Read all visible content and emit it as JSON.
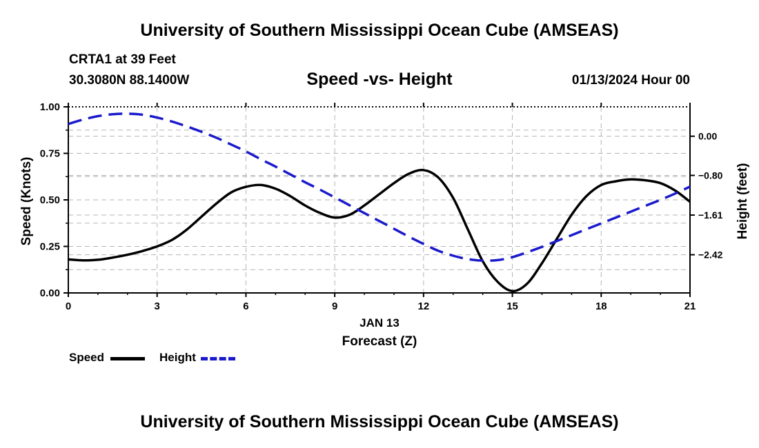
{
  "page": {
    "title_top": "University of Southern Mississippi Ocean Cube (AMSEAS)",
    "title_bottom": "University of Southern Mississippi Ocean Cube (AMSEAS)",
    "station": "CRTA1 at 39 Feet",
    "coords": "30.3080N  88.1400W",
    "subtitle": "Speed -vs- Height",
    "datestamp": "01/13/2024 Hour 00"
  },
  "legend": {
    "speed_label": "Speed",
    "height_label": "Height"
  },
  "colors": {
    "speed": "#000000",
    "height": "#1a1acc",
    "grid": "#b4b4b4"
  },
  "chart_data": {
    "type": "line",
    "xlabel_date": "JAN 13",
    "xlabel": "Forecast (Z)",
    "ylabel_left": "Speed (Knots)",
    "ylabel_right": "Height (feet)",
    "xlim": [
      0,
      21
    ],
    "x_ticks": [
      0,
      3,
      6,
      9,
      12,
      15,
      18,
      21
    ],
    "x_tick_labels": [
      "0",
      "3",
      "6",
      "9",
      "12",
      "15",
      "18",
      "21"
    ],
    "ylim_left": [
      0,
      1
    ],
    "y_left_ticks": [
      0,
      0.25,
      0.5,
      0.75,
      1.0
    ],
    "y_left_tick_labels": [
      "0.00",
      "0.25",
      "0.50",
      "0.75",
      "1.00"
    ],
    "ylim_right": [
      -3.2,
      0.6
    ],
    "y_right_ticks": [
      0.0,
      -0.8,
      -1.61,
      -2.42
    ],
    "y_right_tick_labels": [
      "0.00",
      "−0.80",
      "−1.61",
      "−2.42"
    ],
    "grid": true,
    "series": [
      {
        "name": "Speed",
        "axis": "left",
        "style": "solid",
        "x": [
          0,
          0.5,
          1,
          1.5,
          2,
          2.5,
          3,
          3.5,
          4,
          4.5,
          5,
          5.5,
          6,
          6.5,
          7,
          7.5,
          8,
          8.5,
          9,
          9.5,
          10,
          10.5,
          11,
          11.5,
          12,
          12.5,
          13,
          13.5,
          14,
          14.5,
          15,
          15.5,
          16,
          16.5,
          17,
          17.5,
          18,
          18.5,
          19,
          19.5,
          20,
          20.5,
          21
        ],
        "values": [
          0.18,
          0.175,
          0.178,
          0.19,
          0.205,
          0.225,
          0.25,
          0.285,
          0.34,
          0.41,
          0.48,
          0.54,
          0.57,
          0.58,
          0.56,
          0.52,
          0.47,
          0.43,
          0.405,
          0.42,
          0.47,
          0.53,
          0.59,
          0.64,
          0.66,
          0.62,
          0.51,
          0.34,
          0.17,
          0.06,
          0.01,
          0.05,
          0.16,
          0.29,
          0.42,
          0.52,
          0.58,
          0.6,
          0.61,
          0.605,
          0.59,
          0.55,
          0.49
        ]
      },
      {
        "name": "Height",
        "axis": "right",
        "style": "dashed",
        "x": [
          0,
          0.5,
          1,
          1.5,
          2,
          2.5,
          3,
          3.5,
          4,
          4.5,
          5,
          5.5,
          6,
          6.5,
          7,
          7.5,
          8,
          8.5,
          9,
          9.5,
          10,
          10.5,
          11,
          11.5,
          12,
          12.5,
          13,
          13.5,
          14,
          14.5,
          15,
          15.5,
          16,
          16.5,
          17,
          17.5,
          18,
          18.5,
          19,
          19.5,
          20,
          20.5,
          21
        ],
        "values": [
          0.25,
          0.34,
          0.41,
          0.45,
          0.46,
          0.44,
          0.38,
          0.3,
          0.2,
          0.09,
          -0.03,
          -0.17,
          -0.31,
          -0.47,
          -0.62,
          -0.78,
          -0.94,
          -1.09,
          -1.25,
          -1.41,
          -1.57,
          -1.73,
          -1.89,
          -2.05,
          -2.2,
          -2.34,
          -2.44,
          -2.51,
          -2.54,
          -2.53,
          -2.47,
          -2.37,
          -2.26,
          -2.14,
          -2.02,
          -1.9,
          -1.78,
          -1.66,
          -1.54,
          -1.42,
          -1.3,
          -1.17,
          -1.03
        ]
      }
    ]
  }
}
